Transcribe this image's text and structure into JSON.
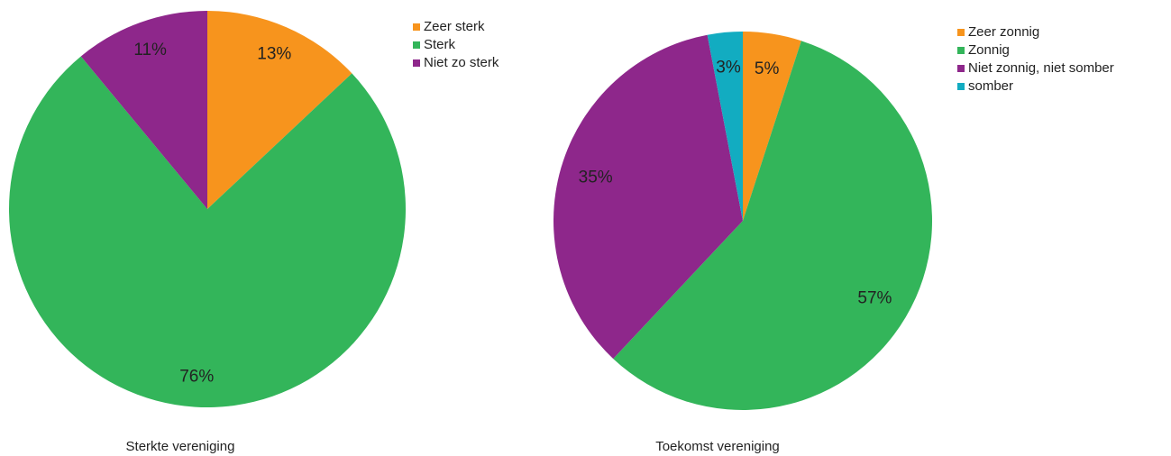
{
  "chart_data": [
    {
      "type": "pie",
      "title": "Sterkte vereniging",
      "categories": [
        "Zeer sterk",
        "Sterk",
        "Niet zo sterk"
      ],
      "values": [
        13,
        76,
        11
      ],
      "value_labels": [
        "13%",
        "76%",
        "11%"
      ],
      "colors": [
        "#f7941d",
        "#33b55a",
        "#8e278b"
      ]
    },
    {
      "type": "pie",
      "title": "Toekomst vereniging",
      "categories": [
        "Zeer zonnig",
        "Zonnig",
        "Niet zonnig, niet somber",
        "somber"
      ],
      "values": [
        5,
        57,
        35,
        3
      ],
      "value_labels": [
        "5%",
        "57%",
        "35%",
        "3%"
      ],
      "colors": [
        "#f7941d",
        "#33b55a",
        "#8e278b",
        "#12acc1"
      ]
    }
  ]
}
